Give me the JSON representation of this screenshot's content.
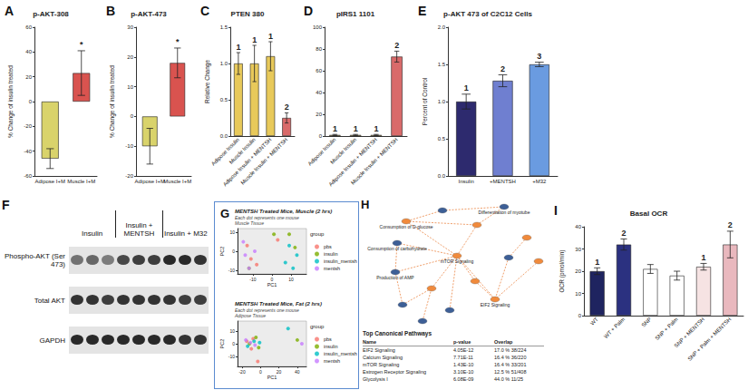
{
  "chart_data": [
    {
      "type": "bar",
      "panel_label": "A",
      "title": "p-AKT-308",
      "y_label": "% Change of insulin treated",
      "categories": [
        "Adipose I+M",
        "Muscle I+M"
      ],
      "values": [
        -46,
        23
      ],
      "errors": [
        8,
        18
      ],
      "annotations": [
        null,
        "*"
      ],
      "colors": [
        "#d9d36b",
        "#d9534f"
      ],
      "ylim": [
        -60,
        60
      ],
      "yticks": [
        -60,
        -40,
        -20,
        0,
        20,
        40,
        60
      ],
      "grid": false
    },
    {
      "type": "bar",
      "panel_label": "B",
      "title": "p-AKT-473",
      "y_label": "% Change of insulin treated",
      "categories": [
        "Adipose I+M",
        "Muscle I+M"
      ],
      "values": [
        -10,
        18
      ],
      "errors": [
        6,
        5
      ],
      "annotations": [
        null,
        "*"
      ],
      "colors": [
        "#d9d36b",
        "#d9534f"
      ],
      "ylim": [
        -20,
        30
      ],
      "yticks": [
        -20,
        -10,
        0,
        10,
        20,
        30
      ],
      "grid": false
    },
    {
      "type": "bar",
      "panel_label": "C",
      "title": "PTEN 380",
      "y_label": "Relative Change",
      "categories": [
        "Adipose Insulin",
        "Muscle Insulin",
        "Adipose Insulin + MENTSH",
        "Muscle Insulin + MENTSH"
      ],
      "values": [
        1.0,
        1.0,
        1.1,
        0.25
      ],
      "errors": [
        0.15,
        0.25,
        0.2,
        0.07
      ],
      "annotations": [
        "1",
        "1",
        "1",
        "2"
      ],
      "colors": [
        "#e8c95a",
        "#e8c95a",
        "#e8c95a",
        "#d96a6a"
      ],
      "ylim": [
        0,
        1.5
      ],
      "yticks": [
        {
          "value": 0,
          "label": "0.0"
        },
        0.5,
        {
          "value": 1,
          "label": "1.0"
        },
        1.5
      ],
      "grid": false
    },
    {
      "type": "bar",
      "panel_label": "D",
      "title": "pIRS1 1101",
      "categories": [
        "Adipose Insulin",
        "Muscle Insulin",
        "Adipose Insulin + MENTSH",
        "Muscle Insulin + MENTSH"
      ],
      "values": [
        1,
        1,
        1,
        73
      ],
      "errors": [
        0.5,
        0.5,
        0.5,
        5
      ],
      "annotations": [
        "1",
        "1",
        "1",
        "2"
      ],
      "colors": [
        "#e8c95a",
        "#e8c95a",
        "#e8c95a",
        "#d96a6a"
      ],
      "ylim": [
        0,
        100
      ],
      "yticks": [
        0,
        20,
        40,
        60,
        80,
        100
      ],
      "grid": false
    },
    {
      "type": "bar",
      "panel_label": "E",
      "title": "p-AKT 473 of C2C12 Cells",
      "y_label": "Percent of Control",
      "categories": [
        "Insulin",
        "+MENTSH",
        "+M32"
      ],
      "values": [
        1.0,
        1.28,
        1.5
      ],
      "errors": [
        0.1,
        0.08,
        0.03
      ],
      "annotations": [
        "1",
        "2",
        "3"
      ],
      "colors": [
        "#2d2a6e",
        "#6f7fd0",
        "#6a9be0"
      ],
      "ylim": [
        0,
        2
      ],
      "yticks": [
        {
          "value": 0,
          "label": "0.0"
        },
        0.5,
        {
          "value": 1,
          "label": "1.0"
        },
        1.5,
        {
          "value": 2,
          "label": "2.0"
        }
      ],
      "grid": false
    },
    {
      "type": "scatter",
      "panel_label": "G",
      "title": "MENTSH Treated Mice, Muscle (2 hrs)",
      "subtitle": "Each dot represents one mouse\nMuscle Tissue",
      "x_label": "PC1",
      "y_label": "PC2",
      "legend_title": "group",
      "legend": "right",
      "series": [
        {
          "name": "pbs",
          "color": "#f8766d",
          "x": [
            -13,
            -11,
            -8,
            3
          ],
          "values": [
            3,
            -4,
            -7,
            6
          ]
        },
        {
          "name": "insulin",
          "color": "#7cae00",
          "x": [
            1,
            9,
            12,
            -12
          ],
          "values": [
            9,
            9,
            2,
            -9
          ]
        },
        {
          "name": "insulin_mentsh",
          "color": "#00bfc4",
          "x": [
            7,
            11,
            9,
            13
          ],
          "values": [
            -6,
            -9,
            3,
            -2
          ]
        },
        {
          "name": "mentsh",
          "color": "#c77cff",
          "x": [
            -14,
            -12,
            -15,
            -9
          ],
          "values": [
            -2,
            -9,
            5,
            0
          ]
        }
      ],
      "xlim": [
        -18,
        18
      ],
      "xticks": [
        -10,
        0,
        10
      ],
      "ylim": [
        -12,
        12
      ],
      "yticks": [
        -10,
        0,
        10
      ],
      "grid": false
    },
    {
      "type": "scatter",
      "title": "MENTSH Treated Mice, Fat (2 hrs)",
      "subtitle": "Each dot represents one mouse\nAdipose Tissue",
      "x_label": "PC1",
      "y_label": "PC2",
      "legend_title": "group",
      "legend": "right",
      "series": [
        {
          "name": "pbs",
          "color": "#f8766d",
          "x": [
            -15,
            -10,
            -3,
            -8
          ],
          "values": [
            2,
            -4,
            -14,
            4
          ]
        },
        {
          "name": "insulin",
          "color": "#7cae00",
          "x": [
            -12,
            -5,
            40,
            -2
          ],
          "values": [
            0,
            5,
            3,
            -3
          ]
        },
        {
          "name": "insulin_mentsh",
          "color": "#00bfc4",
          "x": [
            -14,
            -7,
            30,
            -1
          ],
          "values": [
            -2,
            2,
            12,
            1
          ]
        },
        {
          "name": "mentsh",
          "color": "#c77cff",
          "x": [
            -11,
            -6,
            45,
            -16
          ],
          "values": [
            1,
            -1,
            0,
            3
          ]
        }
      ],
      "xlim": [
        -25,
        50
      ],
      "xticks": [
        -20,
        0,
        20,
        40
      ],
      "ylim": [
        -18,
        18
      ],
      "yticks": [
        -10,
        0,
        10
      ],
      "grid": false
    },
    {
      "type": "bar",
      "panel_label": "I",
      "title": "Basal OCR",
      "y_label": "OCR (pmol/min)",
      "categories": [
        "WT",
        "WT + Palm",
        "SNP",
        "SNP + Palm",
        "SNP + MENTSH",
        "SNP + Palm + MENTSH"
      ],
      "values": [
        20,
        32,
        21,
        18,
        22,
        32
      ],
      "errors": [
        1.5,
        2.5,
        2,
        2,
        1.5,
        6
      ],
      "annotations": [
        "1",
        "2",
        null,
        null,
        "1",
        "2"
      ],
      "colors": [
        "#1f2460",
        "#2b3180",
        "#ffffff",
        "#ffffff",
        "#f6e3e3",
        "#e9b8be"
      ],
      "ylim": [
        0,
        40
      ],
      "yticks": [
        0,
        10,
        20,
        30,
        40
      ],
      "grid": false
    }
  ],
  "blot": {
    "panel_label": "F",
    "groups": [
      "Insulin",
      "Insulin + MENTSH",
      "Insulin + M32"
    ],
    "rows": [
      "Phospho-AKT (Ser 473)",
      "Total AKT",
      "GAPDH"
    ],
    "lanes_per_group": 3,
    "band_intensity": [
      [
        0.55,
        0.6,
        0.5,
        0.75,
        0.8,
        0.8,
        0.9,
        0.9,
        0.85
      ],
      [
        0.85,
        0.85,
        0.8,
        0.85,
        0.85,
        0.85,
        0.85,
        0.8,
        0.8
      ],
      [
        0.9,
        0.9,
        0.9,
        0.9,
        0.9,
        0.9,
        0.9,
        0.85,
        0.85
      ]
    ]
  },
  "network": {
    "panel_label": "H",
    "nodes": [
      "Differentiation of myotube",
      "Consumption of D-glucose",
      "Consumption of carbohydrate",
      "mTOR Signaling",
      "Production of AMP",
      "EIF2 Signaling"
    ],
    "table": {
      "title": "Top Canonical Pathways",
      "header": [
        "Name",
        "p-value",
        "Overlap"
      ],
      "rows": [
        [
          "EIF2 Signaling",
          "4.05E-12",
          "17.0 % 38/224"
        ],
        [
          "Calcium Signaling",
          "7.71E-11",
          "16.4 % 36/220"
        ],
        [
          "mTOR Signaling",
          "1.43E-10",
          "16.4 % 33/201"
        ],
        [
          "Estrogen Receptor Signaling",
          "3.10E-10",
          "12.5 % 51/408"
        ],
        [
          "Glycolysis I",
          "6.08E-09",
          "44.0 % 11/25"
        ]
      ]
    }
  }
}
